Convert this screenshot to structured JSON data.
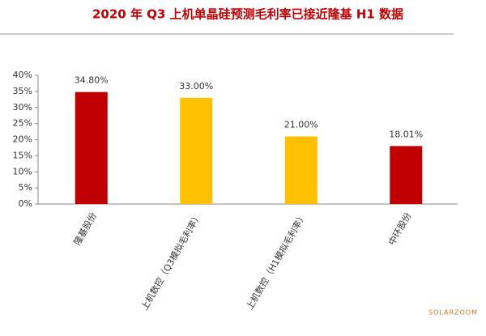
{
  "chart_data": {
    "type": "bar",
    "title": "2020 年 Q3 上机单晶硅预测毛利率已接近隆基 H1 数据",
    "categories": [
      "隆基股份",
      "上机数控（Q3模拟毛利率）",
      "上机数控（H1模拟毛利率）",
      "中环股份"
    ],
    "values": [
      34.8,
      33.0,
      21.0,
      18.01
    ],
    "value_labels": [
      "34.80%",
      "33.00%",
      "21.00%",
      "18.01%"
    ],
    "colors": [
      "#c00000",
      "#ffc000",
      "#ffc000",
      "#c00000"
    ],
    "ylim": [
      0,
      40
    ],
    "yticks": [
      {
        "value": 0,
        "label": "0%"
      },
      {
        "value": 5,
        "label": "5%"
      },
      {
        "value": 10,
        "label": "10%"
      },
      {
        "value": 15,
        "label": "15%"
      },
      {
        "value": 20,
        "label": "20%"
      },
      {
        "value": 25,
        "label": "25%"
      },
      {
        "value": 30,
        "label": "30%"
      },
      {
        "value": 35,
        "label": "35%"
      },
      {
        "value": 40,
        "label": "40%"
      }
    ],
    "watermark": "SOLARZOOM"
  }
}
